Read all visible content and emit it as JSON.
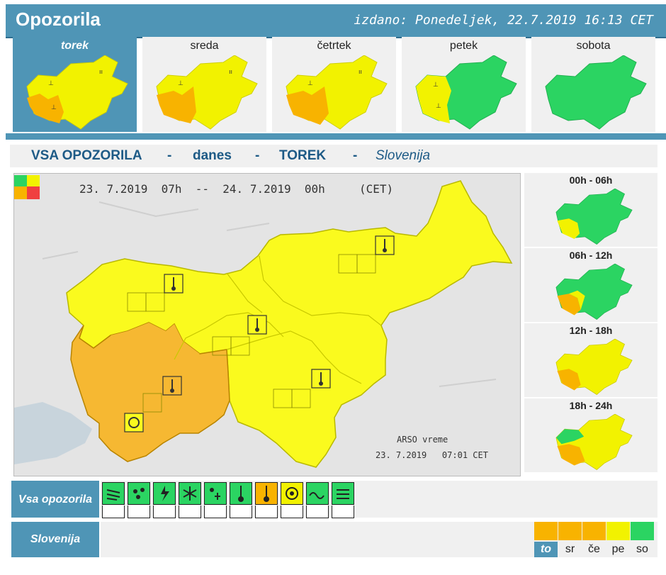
{
  "header": {
    "title": "Opozorila",
    "issued": "izdano: Ponedeljek, 22.7.2019 16:13 CET"
  },
  "days": [
    {
      "label": "torek",
      "active": true
    },
    {
      "label": "sreda",
      "active": false
    },
    {
      "label": "četrtek",
      "active": false
    },
    {
      "label": "petek",
      "active": false
    },
    {
      "label": "sobota",
      "active": false
    }
  ],
  "subtitle": {
    "all": "VSA OPOZORILA",
    "dash": "-",
    "today": "danes",
    "day": "TOREK",
    "region": "Slovenija"
  },
  "map": {
    "period": "23. 7.2019  07h  --  24. 7.2019  00h     (CET)",
    "source": "ARSO vreme",
    "timestamp": "23. 7.2019   07:01 CET"
  },
  "periods": [
    {
      "label": "00h - 06h"
    },
    {
      "label": "06h - 12h"
    },
    {
      "label": "12h - 18h"
    },
    {
      "label": "18h - 24h"
    }
  ],
  "legend": {
    "label": "Vsa opozorila",
    "icons": [
      "wind-icon",
      "rain-icon",
      "thunderstorm-icon",
      "snow-icon",
      "snow-rain-icon",
      "low-temperature-icon",
      "high-temperature-icon",
      "fire-danger-icon",
      "coastal-event-icon",
      "fog-icon"
    ]
  },
  "slovenija": {
    "label": "Slovenija",
    "days": [
      {
        "abbr": "to",
        "active": true,
        "level": "orange"
      },
      {
        "abbr": "sr",
        "active": false,
        "level": "orange"
      },
      {
        "abbr": "če",
        "active": false,
        "level": "orange"
      },
      {
        "abbr": "pe",
        "active": false,
        "level": "yellow"
      },
      {
        "abbr": "so",
        "active": false,
        "level": "green"
      }
    ]
  },
  "colors": {
    "brand": "#4f95b6",
    "green": "#2bd462",
    "yellow": "#f2f200",
    "orange": "#f8b300",
    "red": "#f04040"
  }
}
